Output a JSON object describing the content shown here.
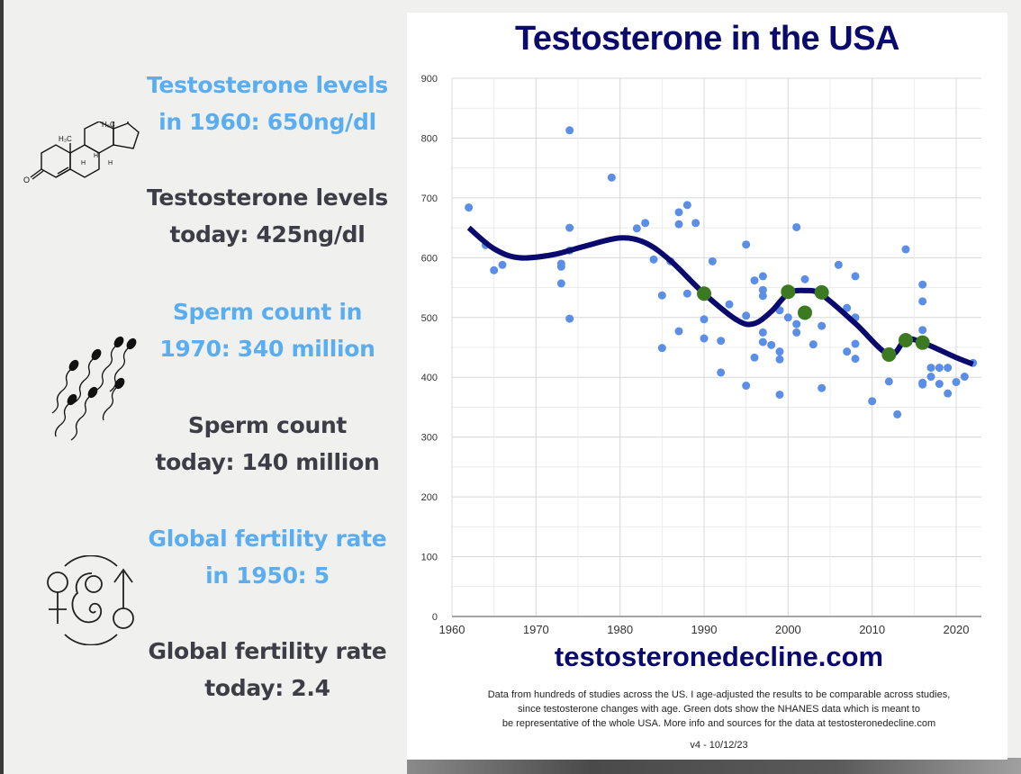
{
  "stats": {
    "testosterone_1960": "Testosterone levels in 1960: 650ng/dl",
    "testosterone_1960_lines": [
      "Testosterone levels",
      "in 1960: 650ng/dl"
    ],
    "testosterone_today_lines": [
      "Testosterone levels",
      "today: 425ng/dl"
    ],
    "sperm_1970_lines": [
      "Sperm count in",
      "1970: 340 million"
    ],
    "sperm_today_lines": [
      "Sperm count",
      "today: 140 million"
    ],
    "fertility_1950_lines": [
      "Global fertility rate",
      "in 1950: 5"
    ],
    "fertility_today_lines": [
      "Global fertility rate",
      "today: 2.4"
    ]
  },
  "icons": {
    "molecule": "testosterone-molecule-icon",
    "sperm": "sperm-icon",
    "fertility": "fertility-symbols-icon"
  },
  "molecule_labels": {
    "oh": "OH",
    "h3c_top": "H₃C",
    "h3c_left": "H₃C",
    "h": "H",
    "o": "O"
  },
  "colors": {
    "highlight_blue": "#5aaef0",
    "dark_text": "#3d3e45",
    "title_navy": "#0a0a6e",
    "study_point": "#5b8ee6",
    "nhanes_point": "#3c7a22",
    "trend_line": "#0a0a6e"
  },
  "footer": {
    "site": "testosteronedecline.com",
    "note_lines": [
      "Data from hundreds of studies across the US. I age-adjusted the results to be comparable across studies,",
      "since testosterone changes with age. Green dots show the NHANES data which is meant to",
      "be representative of the whole USA. More info and sources for the data at testosteronedecline.com"
    ],
    "version": "v4 - 10/12/23"
  },
  "chart_data": {
    "type": "scatter",
    "title": "Testosterone in the USA",
    "xlabel": "",
    "ylabel": "",
    "xlim": [
      1960,
      2023
    ],
    "ylim": [
      0,
      900
    ],
    "x_ticks": [
      1960,
      1970,
      1980,
      1990,
      2000,
      2010,
      2020
    ],
    "y_ticks": [
      0,
      100,
      200,
      300,
      400,
      500,
      600,
      700,
      800,
      900
    ],
    "grid": true,
    "legend": "none",
    "series": [
      {
        "name": "Studies (age-adjusted)",
        "type": "scatter",
        "color": "#5b8ee6",
        "points": [
          [
            1962,
            684
          ],
          [
            1964,
            621
          ],
          [
            1965,
            579
          ],
          [
            1966,
            588
          ],
          [
            1973,
            585
          ],
          [
            1973,
            590
          ],
          [
            1973,
            557
          ],
          [
            1974,
            813
          ],
          [
            1974,
            650
          ],
          [
            1974,
            612
          ],
          [
            1974,
            498
          ],
          [
            1979,
            734
          ],
          [
            1982,
            649
          ],
          [
            1983,
            658
          ],
          [
            1984,
            597
          ],
          [
            1985,
            537
          ],
          [
            1985,
            449
          ],
          [
            1986,
            594
          ],
          [
            1987,
            676
          ],
          [
            1987,
            656
          ],
          [
            1987,
            477
          ],
          [
            1988,
            688
          ],
          [
            1988,
            540
          ],
          [
            1989,
            658
          ],
          [
            1990,
            497
          ],
          [
            1990,
            465
          ],
          [
            1991,
            594
          ],
          [
            1992,
            461
          ],
          [
            1992,
            408
          ],
          [
            1993,
            522
          ],
          [
            1995,
            622
          ],
          [
            1995,
            503
          ],
          [
            1995,
            386
          ],
          [
            1996,
            562
          ],
          [
            1996,
            433
          ],
          [
            1997,
            569
          ],
          [
            1997,
            546
          ],
          [
            1997,
            536
          ],
          [
            1997,
            475
          ],
          [
            1997,
            459
          ],
          [
            1998,
            454
          ],
          [
            1999,
            512
          ],
          [
            1999,
            443
          ],
          [
            1999,
            430
          ],
          [
            1999,
            371
          ],
          [
            2000,
            500
          ],
          [
            2001,
            651
          ],
          [
            2001,
            489
          ],
          [
            2001,
            475
          ],
          [
            2002,
            564
          ],
          [
            2003,
            455
          ],
          [
            2004,
            486
          ],
          [
            2004,
            382
          ],
          [
            2006,
            588
          ],
          [
            2007,
            516
          ],
          [
            2007,
            443
          ],
          [
            2008,
            569
          ],
          [
            2008,
            500
          ],
          [
            2008,
            456
          ],
          [
            2008,
            431
          ],
          [
            2010,
            360
          ],
          [
            2012,
            393
          ],
          [
            2013,
            338
          ],
          [
            2014,
            614
          ],
          [
            2016,
            555
          ],
          [
            2016,
            527
          ],
          [
            2016,
            479
          ],
          [
            2016,
            391
          ],
          [
            2016,
            388
          ],
          [
            2017,
            416
          ],
          [
            2017,
            401
          ],
          [
            2018,
            416
          ],
          [
            2018,
            389
          ],
          [
            2019,
            416
          ],
          [
            2019,
            373
          ],
          [
            2020,
            392
          ],
          [
            2021,
            401
          ],
          [
            2022,
            424
          ]
        ]
      },
      {
        "name": "NHANES",
        "type": "scatter",
        "color": "#3c7a22",
        "points": [
          [
            1990,
            540
          ],
          [
            2000,
            543
          ],
          [
            2002,
            508
          ],
          [
            2004,
            542
          ],
          [
            2012,
            438
          ],
          [
            2014,
            462
          ],
          [
            2016,
            458
          ]
        ]
      },
      {
        "name": "Trend",
        "type": "line",
        "color": "#0a0a6e",
        "points": [
          [
            1962,
            650
          ],
          [
            1965,
            615
          ],
          [
            1968,
            600
          ],
          [
            1972,
            605
          ],
          [
            1976,
            620
          ],
          [
            1980,
            633
          ],
          [
            1983,
            625
          ],
          [
            1986,
            595
          ],
          [
            1990,
            540
          ],
          [
            1994,
            495
          ],
          [
            1996,
            490
          ],
          [
            1998,
            510
          ],
          [
            2000,
            540
          ],
          [
            2002,
            545
          ],
          [
            2004,
            538
          ],
          [
            2008,
            490
          ],
          [
            2012,
            438
          ],
          [
            2014,
            463
          ],
          [
            2016,
            458
          ],
          [
            2020,
            433
          ],
          [
            2022,
            422
          ]
        ]
      }
    ]
  }
}
